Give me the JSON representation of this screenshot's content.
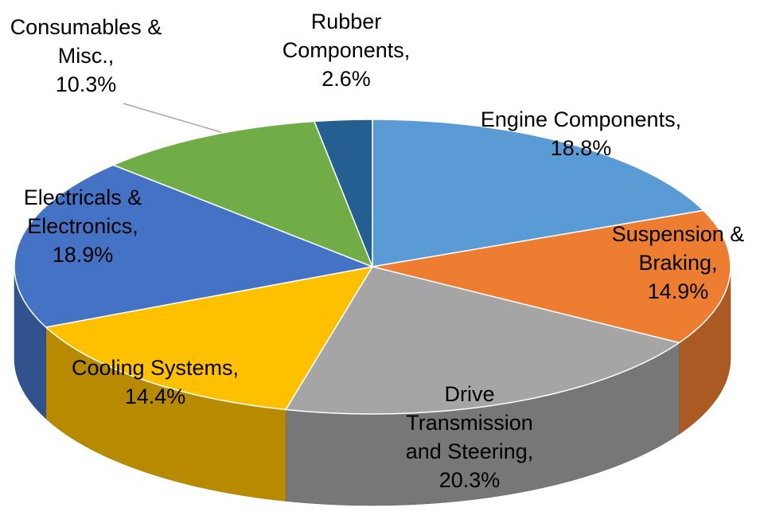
{
  "chart_data": {
    "type": "pie3d",
    "categories": [
      "Engine Components,",
      "Suspension & Braking,",
      "Drive Transmission and Steering,",
      "Cooling Systems,",
      "Electricals & Electronics,",
      "Consumables & Misc.,",
      "Rubber Components,"
    ],
    "values": [
      18.8,
      14.9,
      20.3,
      14.4,
      18.9,
      10.3,
      2.6
    ],
    "value_labels": [
      "18.8%",
      "14.9%",
      "20.3%",
      "14.4%",
      "18.9%",
      "10.3%",
      "2.6%"
    ],
    "colors": [
      "#5b9bd5",
      "#ed7d31",
      "#a5a5a5",
      "#ffc000",
      "#4472c4",
      "#70ad47",
      "#255e91"
    ]
  }
}
